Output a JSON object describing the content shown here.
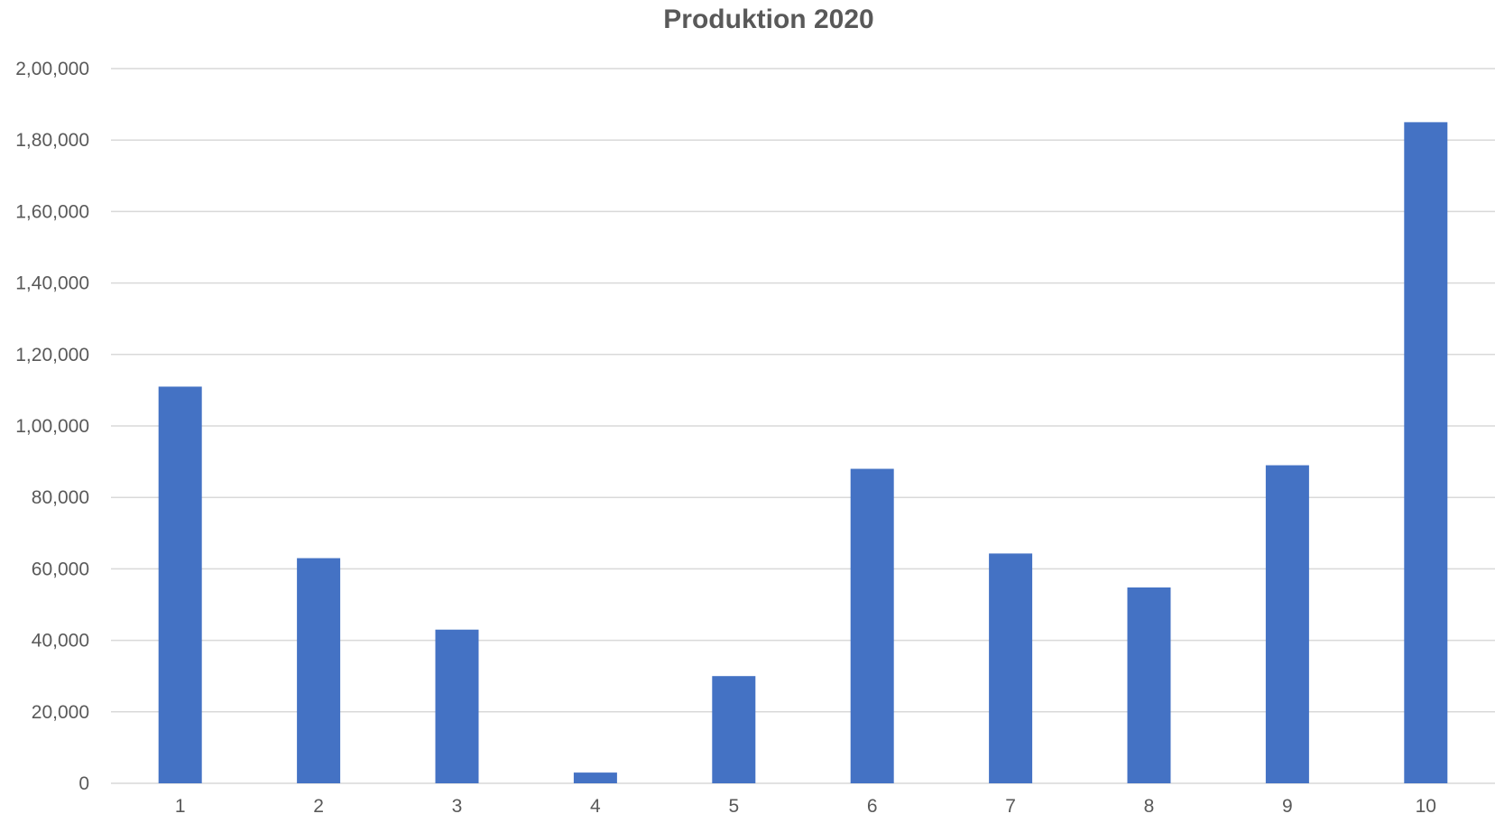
{
  "colors": {
    "bar": "#4472C4",
    "gridline": "#D9D9D9",
    "text": "#595959",
    "background": "#FFFFFF"
  },
  "chart_data": {
    "type": "bar",
    "title": "Produktion 2020",
    "xlabel": "",
    "ylabel": "",
    "categories": [
      "1",
      "2",
      "3",
      "4",
      "5",
      "6",
      "7",
      "8",
      "9",
      "10"
    ],
    "values": [
      111000,
      63000,
      43000,
      3000,
      30000,
      88000,
      64300,
      54800,
      89000,
      185000
    ],
    "ylim": [
      0,
      200000
    ],
    "y_ticks": [
      0,
      20000,
      40000,
      60000,
      80000,
      100000,
      120000,
      140000,
      160000,
      180000,
      200000
    ],
    "y_tick_labels": [
      "0",
      "20,000",
      "40,000",
      "60,000",
      "80,000",
      "1,00,000",
      "1,20,000",
      "1,40,000",
      "1,60,000",
      "1,80,000",
      "2,00,000"
    ],
    "grid": true,
    "legend": "none"
  }
}
